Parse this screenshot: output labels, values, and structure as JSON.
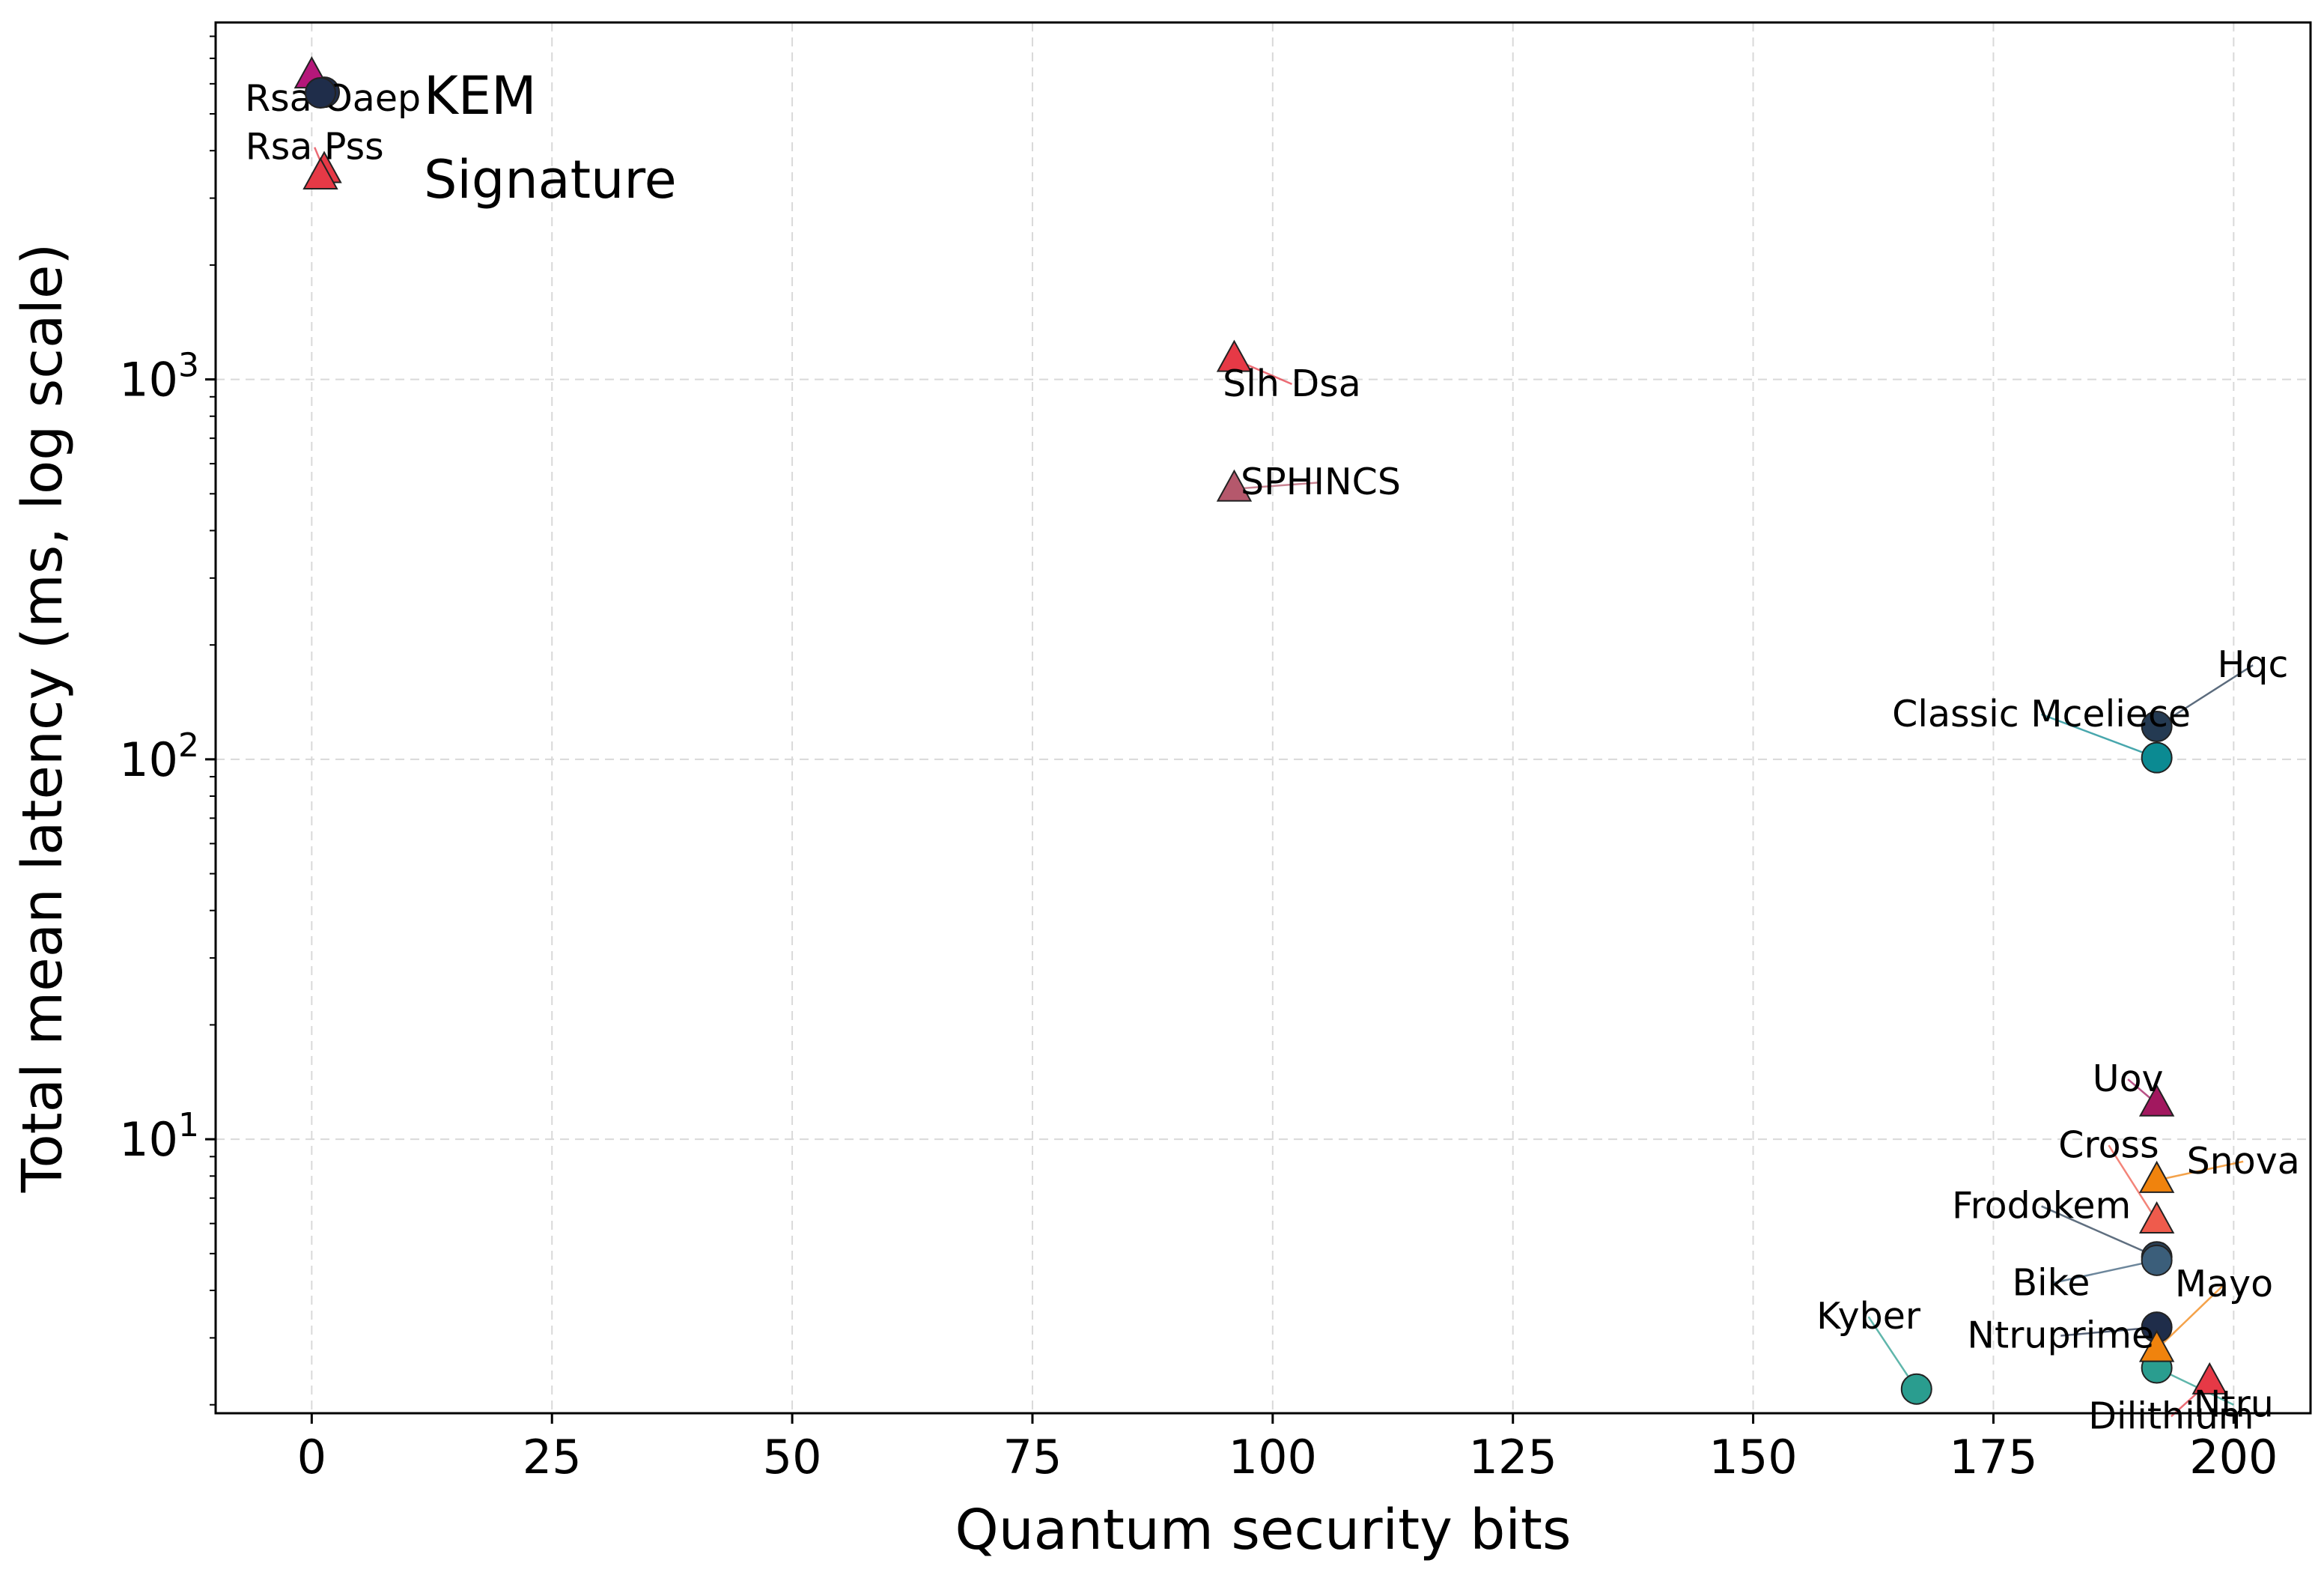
{
  "chart_data": {
    "type": "scatter",
    "title": "",
    "xlabel": "Quantum security bits",
    "ylabel": "Total mean latency (ms, log scale)",
    "xlim": [
      -10,
      208
    ],
    "ylim": [
      1.9,
      8700
    ],
    "yscale": "log",
    "grid": true,
    "legend_position": "top-left",
    "x_ticks": [
      {
        "value": 0,
        "label": "0"
      },
      {
        "value": 25,
        "label": "25"
      },
      {
        "value": 50,
        "label": "50"
      },
      {
        "value": 75,
        "label": "75"
      },
      {
        "value": 100,
        "label": "100"
      },
      {
        "value": 125,
        "label": "125"
      },
      {
        "value": 150,
        "label": "150"
      },
      {
        "value": 175,
        "label": "175"
      },
      {
        "value": 200,
        "label": "200"
      }
    ],
    "y_ticks": [
      {
        "value": 10,
        "base": "10",
        "exp": "1"
      },
      {
        "value": 100,
        "base": "10",
        "exp": "2"
      },
      {
        "value": 1000,
        "base": "10",
        "exp": "3"
      }
    ],
    "legend": [
      {
        "label": "KEM",
        "marker": "circle",
        "color": "#1f2d4a"
      },
      {
        "label": "Signature",
        "marker": "triangle",
        "color": "#e63946"
      }
    ],
    "series": [
      {
        "name": "KEM",
        "marker": "circle",
        "points": [
          {
            "label": "Rsa Oaep",
            "x": 1.3,
            "y": 5700,
            "color": "#1f2d4a",
            "label_dx": 0.9,
            "label_dy": 0.96
          },
          {
            "label": "Hqc",
            "x": 192,
            "y": 122,
            "color": "#243a52",
            "label_dx": 10,
            "label_dy": 1.45
          },
          {
            "label": "Classic Mceliece",
            "x": 192,
            "y": 101,
            "color": "#0b8a92",
            "label_dx": -12,
            "label_dy": 1.3
          },
          {
            "label": "Frodokem",
            "x": 192,
            "y": 4.9,
            "color": "#2a3f55",
            "label_dx": -12,
            "label_dy": 1.36
          },
          {
            "label": "Bike",
            "x": 192,
            "y": 4.8,
            "color": "#3b5e7a",
            "label_dx": -11,
            "label_dy": 0.87
          },
          {
            "label": "Kyber",
            "x": 167,
            "y": 2.2,
            "color": "#2a9d8f",
            "label_dx": -5,
            "label_dy": 1.55
          },
          {
            "label": "Ntruprime",
            "x": 192,
            "y": 3.2,
            "color": "#1f2d4a",
            "label_dx": -10,
            "label_dy": 0.95
          },
          {
            "label": "Ntru",
            "x": 192,
            "y": 2.5,
            "color": "#2a9d8f",
            "label_dx": 8,
            "label_dy": 0.8
          }
        ]
      },
      {
        "name": "Signature",
        "marker": "triangle",
        "points": [
          {
            "label": "",
            "x": 0,
            "y": 6300,
            "color": "#b5177a",
            "label_dx": 0,
            "label_dy": 1
          },
          {
            "label": "Rsa Pss",
            "x": 1.3,
            "y": 3550,
            "color": "#e63946",
            "label_dx": -1,
            "label_dy": 1.15
          },
          {
            "label": "Slh Dsa",
            "x": 96,
            "y": 1130,
            "color": "#e63946",
            "label_dx": 6,
            "label_dy": 0.86
          },
          {
            "label": "SPHINCS",
            "x": 96,
            "y": 515,
            "color": "#b5586c",
            "label_dx": 9,
            "label_dy": 1.04
          },
          {
            "label": "Uov",
            "x": 192,
            "y": 12.4,
            "color": "#a2185f",
            "label_dx": -3,
            "label_dy": 1.16
          },
          {
            "label": "Snova",
            "x": 192,
            "y": 7.8,
            "color": "#f0830d",
            "label_dx": 9,
            "label_dy": 1.12
          },
          {
            "label": "Cross",
            "x": 192,
            "y": 6.1,
            "color": "#ef5b4c",
            "label_dx": -5,
            "label_dy": 1.58
          },
          {
            "label": "Mayo",
            "x": 192,
            "y": 2.8,
            "color": "#f0830d",
            "label_dx": 7,
            "label_dy": 1.48
          },
          {
            "label": "Dilithium",
            "x": 197.5,
            "y": 2.3,
            "color": "#e63946",
            "label_dx": -4,
            "label_dy": 0.81
          }
        ]
      }
    ]
  }
}
